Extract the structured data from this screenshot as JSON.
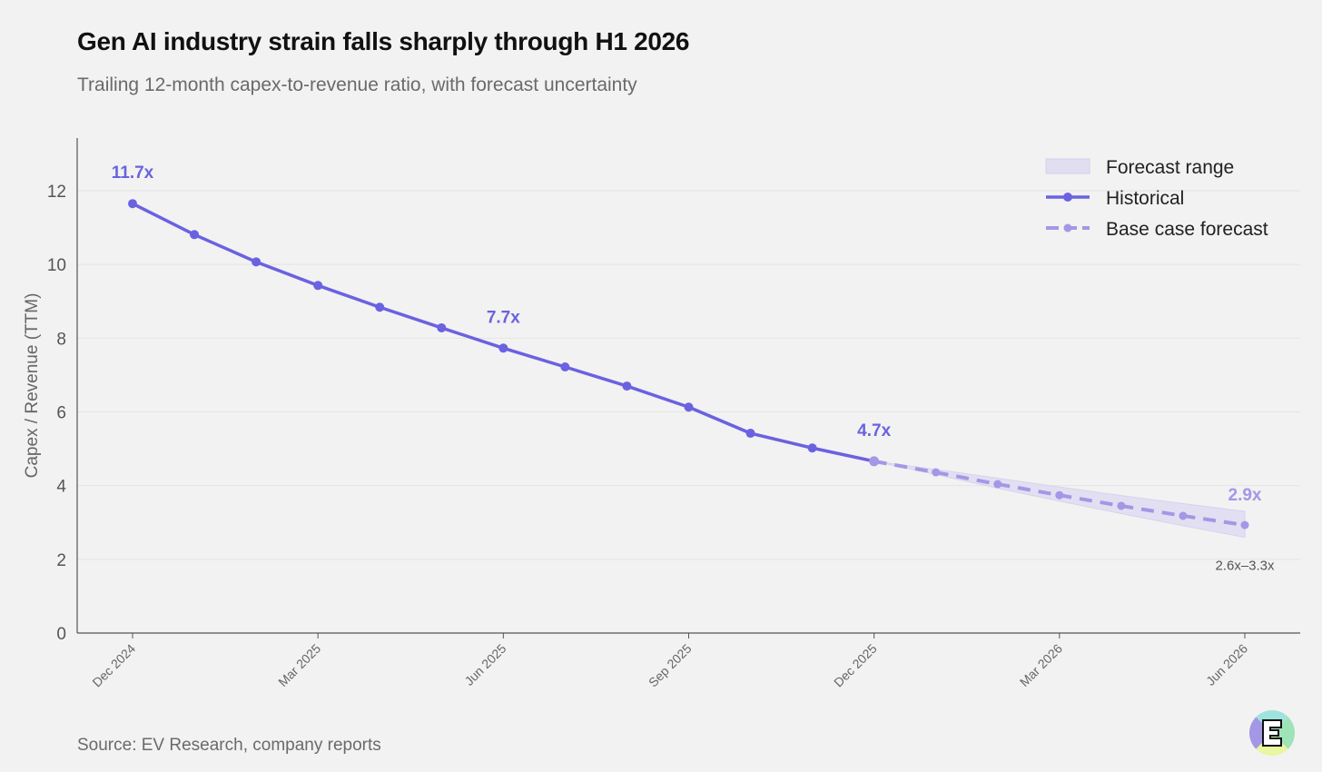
{
  "title": "Gen AI industry strain falls sharply through H1 2026",
  "subtitle": "Trailing 12-month capex-to-revenue ratio, with forecast uncertainty",
  "source": "Source: EV Research, company reports",
  "colors": {
    "historical": "#6a62e0",
    "forecast": "#a497e6",
    "band": "#e2def2",
    "grid": "#e4e4e4",
    "axis": "#555555"
  },
  "chart_data": {
    "type": "line",
    "ylabel": "Capex / Revenue (TTM)",
    "ylim": [
      0,
      13.3
    ],
    "yticks": [
      0,
      2,
      4,
      6,
      8,
      10,
      12
    ],
    "grid": true,
    "legend_position": "top-right",
    "x_months": [
      "Dec 2024",
      "Jan 2025",
      "Feb 2025",
      "Mar 2025",
      "Apr 2025",
      "May 2025",
      "Jun 2025",
      "Jul 2025",
      "Aug 2025",
      "Sep 2025",
      "Oct 2025",
      "Nov 2025",
      "Dec 2025",
      "Jan 2026",
      "Feb 2026",
      "Mar 2026",
      "Apr 2026",
      "May 2026",
      "Jun 2026"
    ],
    "xtick_labels": [
      "Dec 2024",
      "Mar 2025",
      "Jun 2025",
      "Sep 2025",
      "Dec 2025",
      "Mar 2026",
      "Jun 2026"
    ],
    "legend": [
      "Forecast range",
      "Historical",
      "Base case forecast"
    ],
    "series": [
      {
        "name": "Historical",
        "x_index": [
          0,
          1,
          2,
          3,
          4,
          5,
          6,
          7,
          8,
          9,
          10,
          11,
          12
        ],
        "values": [
          11.65,
          10.81,
          10.07,
          9.43,
          8.84,
          8.28,
          7.73,
          7.22,
          6.7,
          6.13,
          5.42,
          5.02,
          4.66
        ]
      },
      {
        "name": "Base case forecast",
        "x_index": [
          12,
          13,
          14,
          15,
          16,
          17,
          18
        ],
        "values": [
          4.66,
          4.36,
          4.04,
          3.74,
          3.45,
          3.18,
          2.93
        ]
      }
    ],
    "forecast_range": {
      "x_index": [
        12,
        13,
        14,
        15,
        16,
        17,
        18
      ],
      "lower": [
        4.66,
        4.3,
        3.93,
        3.58,
        3.24,
        2.91,
        2.6
      ],
      "upper": [
        4.66,
        4.44,
        4.2,
        3.96,
        3.73,
        3.51,
        3.3
      ]
    },
    "annotations": [
      {
        "x_index": 0,
        "text": "11.7x",
        "style": "historical"
      },
      {
        "x_index": 6,
        "text": "7.7x",
        "style": "historical"
      },
      {
        "x_index": 12,
        "text": "4.7x",
        "style": "historical"
      },
      {
        "x_index": 18,
        "text": "2.9x",
        "style": "forecast"
      },
      {
        "x_index": 18,
        "text": "2.6x–3.3x",
        "style": "range"
      }
    ]
  }
}
